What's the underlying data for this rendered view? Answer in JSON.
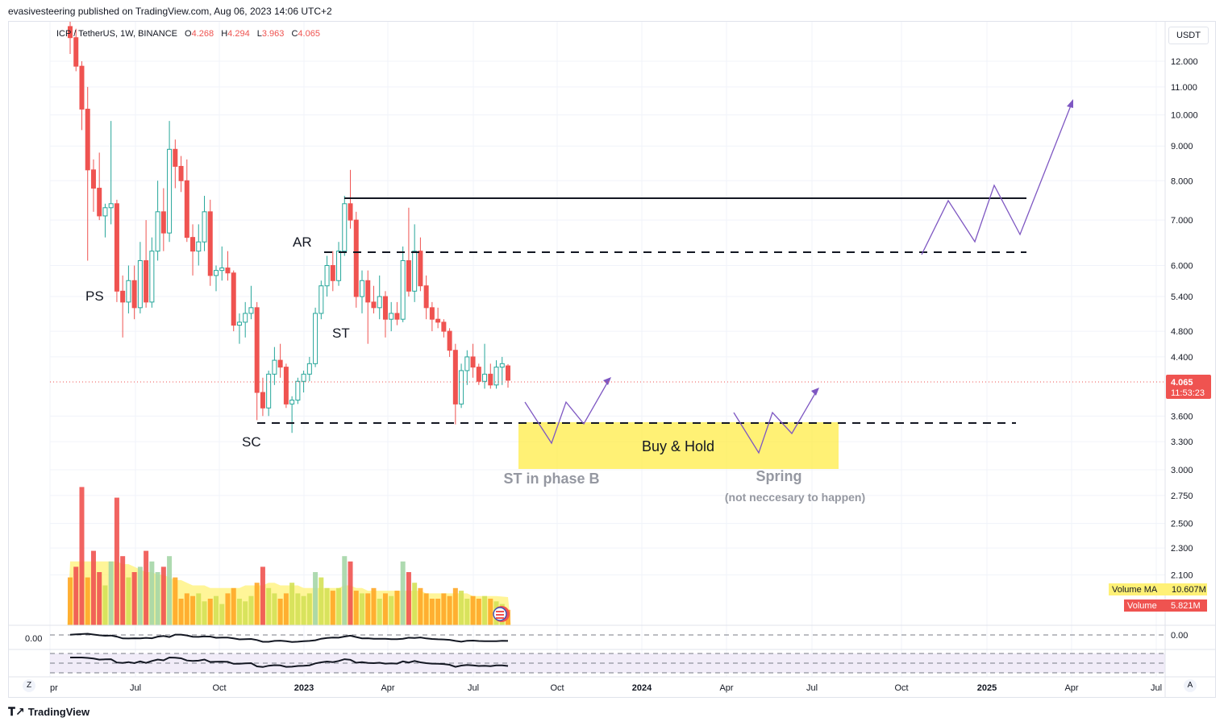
{
  "header": {
    "published": "evasivesteering published on TradingView.com, Aug 06, 2023 14:06 UTC+2"
  },
  "legend": {
    "symbol": "ICP / TetherUS, 1W, BINANCE",
    "o_label": "O",
    "o": "4.268",
    "h_label": "H",
    "h": "4.294",
    "l_label": "L",
    "l": "3.963",
    "c_label": "C",
    "c": "4.065"
  },
  "price_axis": {
    "currency": "USDT",
    "ticks": [
      "12.000",
      "11.000",
      "10.000",
      "9.000",
      "8.000",
      "7.000",
      "6.000",
      "5.400",
      "4.800",
      "4.400",
      "3.600",
      "3.300",
      "3.000",
      "2.750",
      "2.500",
      "2.300",
      "2.100"
    ],
    "tick_values": [
      12,
      11,
      10,
      9,
      8,
      7,
      6,
      5.4,
      4.8,
      4.4,
      3.6,
      3.3,
      3.0,
      2.75,
      2.5,
      2.3,
      2.1
    ],
    "last_price": "4.065",
    "countdown": "11:53:23",
    "volume_ma_label": "Volume MA",
    "volume_ma_value": "10.607M",
    "volume_label": "Volume",
    "volume_value": "5.821M",
    "osc_zero": "0.00",
    "osc_zero_left": "0.00"
  },
  "time_axis": {
    "labels": [
      "pr",
      "Jul",
      "Oct",
      "2023",
      "Apr",
      "Jul",
      "Oct",
      "2024",
      "Apr",
      "Jul",
      "Oct",
      "2025",
      "Apr",
      "Jul"
    ],
    "bold": [
      false,
      false,
      false,
      true,
      false,
      false,
      false,
      true,
      false,
      false,
      false,
      true,
      false,
      false
    ]
  },
  "annotations": {
    "ps": "PS",
    "sc": "SC",
    "ar": "AR",
    "st": "ST",
    "zone": "Buy & Hold",
    "st_phase_b": "ST in phase B",
    "spring": "Spring",
    "spring_note": "(not neccesary to happen)"
  },
  "buttons": {
    "z": "Z",
    "a": "A"
  },
  "footer": {
    "brand": "TradingView"
  },
  "colors": {
    "up": "#26a69a",
    "down": "#ef5350",
    "accent_purple": "#7e57c2",
    "zone": "#ffeb3b",
    "volume_ma": "#fff176"
  },
  "chart_data": {
    "type": "candlestick",
    "title": "ICP / TetherUS, 1W, BINANCE",
    "scale": "log",
    "ylim": [
      2.05,
      13.0
    ],
    "x_start": "2022-04-04",
    "interval": "1W",
    "candles_ohlc": [
      [
        13.5,
        14.2,
        12.3,
        13.0
      ],
      [
        13.0,
        13.4,
        11.6,
        11.8
      ],
      [
        11.8,
        12.0,
        9.5,
        10.2
      ],
      [
        10.2,
        11.0,
        6.1,
        8.3
      ],
      [
        8.3,
        8.6,
        7.2,
        7.8
      ],
      [
        7.8,
        8.8,
        7.0,
        7.1
      ],
      [
        7.1,
        7.4,
        6.6,
        7.3
      ],
      [
        7.3,
        9.8,
        6.9,
        7.4
      ],
      [
        7.4,
        7.5,
        5.3,
        5.5
      ],
      [
        5.5,
        5.8,
        4.7,
        5.3
      ],
      [
        5.3,
        6.0,
        5.1,
        5.7
      ],
      [
        5.7,
        6.0,
        5.0,
        5.2
      ],
      [
        5.2,
        6.5,
        5.1,
        6.1
      ],
      [
        6.1,
        7.0,
        5.2,
        5.3
      ],
      [
        5.3,
        6.6,
        5.2,
        6.3
      ],
      [
        6.3,
        8.0,
        6.1,
        7.2
      ],
      [
        7.2,
        7.8,
        6.3,
        6.7
      ],
      [
        6.7,
        9.8,
        6.5,
        8.9
      ],
      [
        8.9,
        9.2,
        7.8,
        8.4
      ],
      [
        8.4,
        8.7,
        7.7,
        8.0
      ],
      [
        8.0,
        8.6,
        6.5,
        6.6
      ],
      [
        6.6,
        6.9,
        5.8,
        6.3
      ],
      [
        6.3,
        6.9,
        6.0,
        6.5
      ],
      [
        6.5,
        7.6,
        6.3,
        7.2
      ],
      [
        7.2,
        7.5,
        5.6,
        5.8
      ],
      [
        5.8,
        6.0,
        5.5,
        5.9
      ],
      [
        5.9,
        6.4,
        5.7,
        5.95
      ],
      [
        5.95,
        6.3,
        5.7,
        5.85
      ],
      [
        5.85,
        5.9,
        4.8,
        4.9
      ],
      [
        4.9,
        5.1,
        4.6,
        4.95
      ],
      [
        4.95,
        5.3,
        4.7,
        5.1
      ],
      [
        5.1,
        5.6,
        5.0,
        5.2
      ],
      [
        5.2,
        5.3,
        3.55,
        3.9
      ],
      [
        3.9,
        4.1,
        3.6,
        3.7
      ],
      [
        3.7,
        4.2,
        3.6,
        4.15
      ],
      [
        4.15,
        4.55,
        4.0,
        4.35
      ],
      [
        4.35,
        4.6,
        4.1,
        4.25
      ],
      [
        4.25,
        4.3,
        3.7,
        3.75
      ],
      [
        3.75,
        3.85,
        3.4,
        3.8
      ],
      [
        3.8,
        4.1,
        3.75,
        4.05
      ],
      [
        4.05,
        4.2,
        3.9,
        4.15
      ],
      [
        4.15,
        4.4,
        4.05,
        4.3
      ],
      [
        4.3,
        5.2,
        4.25,
        5.1
      ],
      [
        5.1,
        5.7,
        5.0,
        5.6
      ],
      [
        5.6,
        6.2,
        5.4,
        6.0
      ],
      [
        6.0,
        6.3,
        5.5,
        5.7
      ],
      [
        5.7,
        6.5,
        5.6,
        6.3
      ],
      [
        6.3,
        7.6,
        6.2,
        7.4
      ],
      [
        7.4,
        8.3,
        6.8,
        7.0
      ],
      [
        7.0,
        7.2,
        5.2,
        5.4
      ],
      [
        5.4,
        5.9,
        5.1,
        5.7
      ],
      [
        5.7,
        5.9,
        4.6,
        5.3
      ],
      [
        5.3,
        5.6,
        5.1,
        5.2
      ],
      [
        5.2,
        5.8,
        5.0,
        5.4
      ],
      [
        5.4,
        5.5,
        4.7,
        5.0
      ],
      [
        5.0,
        5.3,
        4.8,
        5.1
      ],
      [
        5.1,
        5.3,
        4.9,
        5.0
      ],
      [
        5.0,
        6.4,
        4.95,
        6.1
      ],
      [
        6.1,
        7.3,
        5.4,
        5.5
      ],
      [
        5.5,
        6.9,
        5.3,
        6.3
      ],
      [
        6.3,
        6.6,
        5.5,
        5.6
      ],
      [
        5.6,
        5.8,
        5.0,
        5.2
      ],
      [
        5.2,
        5.3,
        4.8,
        5.0
      ],
      [
        5.0,
        5.2,
        4.85,
        4.95
      ],
      [
        4.95,
        5.0,
        4.7,
        4.8
      ],
      [
        4.8,
        4.85,
        4.4,
        4.5
      ],
      [
        4.5,
        4.6,
        3.5,
        3.75
      ],
      [
        3.75,
        4.3,
        3.7,
        4.2
      ],
      [
        4.2,
        4.5,
        4.0,
        4.4
      ],
      [
        4.4,
        4.6,
        4.1,
        4.25
      ],
      [
        4.25,
        4.3,
        4.0,
        4.05
      ],
      [
        4.05,
        4.6,
        3.95,
        4.15
      ],
      [
        4.15,
        4.3,
        3.95,
        4.0
      ],
      [
        4.0,
        4.35,
        3.95,
        4.25
      ],
      [
        4.25,
        4.4,
        4.0,
        4.3
      ],
      [
        4.268,
        4.294,
        3.963,
        4.065
      ]
    ],
    "volume_m": [
      18,
      22,
      52,
      18,
      28,
      20,
      15,
      24,
      48,
      26,
      18,
      20,
      22,
      28,
      24,
      20,
      22,
      26,
      18,
      10,
      12,
      11,
      12,
      9,
      10,
      11,
      8,
      12,
      14,
      10,
      9,
      11,
      16,
      22,
      14,
      12,
      10,
      12,
      16,
      12,
      11,
      12,
      20,
      18,
      14,
      13,
      14,
      26,
      24,
      13,
      12,
      12,
      14,
      10,
      12,
      11,
      13,
      24,
      20,
      16,
      14,
      12,
      10,
      10,
      12,
      11,
      14,
      13,
      10,
      11,
      10,
      11,
      10,
      9,
      8,
      5.821
    ],
    "volume_ma_m": [
      24,
      24,
      24,
      24,
      24,
      24,
      24,
      24,
      24,
      23,
      23,
      22,
      21,
      20,
      20,
      19,
      19,
      18,
      17,
      17,
      16,
      15,
      15,
      15,
      14,
      14,
      14,
      14,
      14,
      14,
      15,
      15,
      15,
      15,
      16,
      16,
      15,
      15,
      15,
      15,
      14,
      14,
      14,
      14,
      14,
      14,
      14,
      15,
      15,
      14,
      14,
      13,
      13,
      13,
      13,
      13,
      13,
      13,
      13,
      13,
      13,
      12,
      12,
      12,
      12,
      12,
      12,
      12,
      12,
      11,
      11,
      11,
      11,
      11,
      10.8,
      10.607
    ],
    "horizontal_levels": [
      7.6,
      6.25,
      3.52
    ],
    "zone": {
      "low": 3.0,
      "high": 3.52,
      "label": "Buy & Hold"
    }
  }
}
